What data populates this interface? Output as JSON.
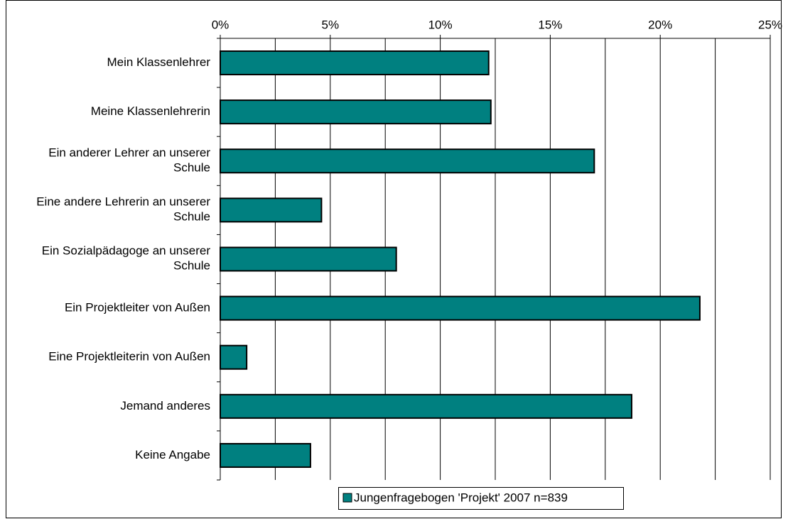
{
  "chart_data": {
    "type": "hbar",
    "categories": [
      "Mein Klassenlehrer",
      "Meine Klassenlehrerin",
      "Ein anderer Lehrer an unserer Schule",
      "Eine andere Lehrerin an unserer Schule",
      "Ein Sozialpädagoge an unserer Schule",
      "Ein Projektleiter von Außen",
      "Eine Projektleiterin von Außen",
      "Jemand anderes",
      "Keine Angabe"
    ],
    "series": [
      {
        "name": "Jungenfragebogen 'Projekt' 2007 n=839",
        "color": "#008080",
        "values": [
          12.2,
          12.3,
          17.0,
          4.6,
          8.0,
          21.8,
          1.2,
          18.7,
          4.1
        ]
      }
    ],
    "xlim": [
      0,
      25
    ],
    "xticks": [
      {
        "value": 0,
        "label": "0%"
      },
      {
        "value": 5,
        "label": "5%"
      },
      {
        "value": 10,
        "label": "10%"
      },
      {
        "value": 15,
        "label": "15%"
      },
      {
        "value": 20,
        "label": "20%"
      },
      {
        "value": 25,
        "label": "25%"
      }
    ],
    "xminor": [
      2.5,
      7.5,
      12.5,
      17.5,
      22.5
    ],
    "grid": true,
    "legend": "bottom"
  }
}
